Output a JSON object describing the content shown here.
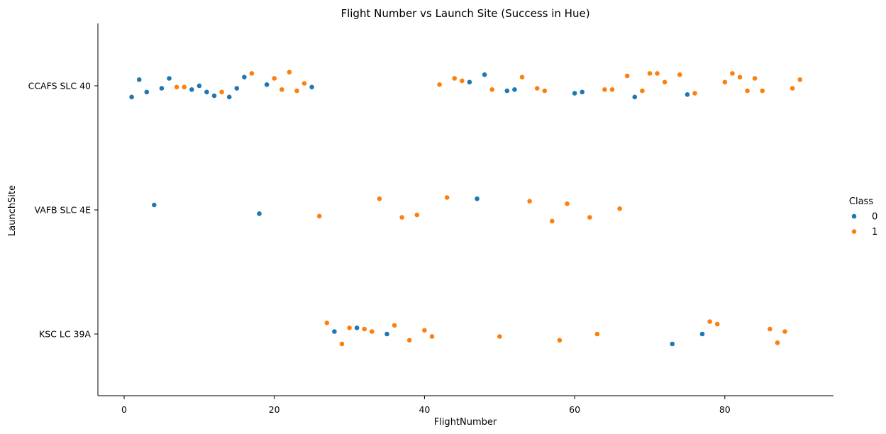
{
  "chart_data": {
    "type": "scatter",
    "title": "Flight Number vs Launch Site (Success in Hue)",
    "xlabel": "FlightNumber",
    "ylabel": "LaunchSite",
    "xlim": [
      -3.5,
      94.5
    ],
    "xticks": [
      0,
      20,
      40,
      60,
      80
    ],
    "categories": [
      "CCAFS SLC 40",
      "VAFB SLC 4E",
      "KSC LC 39A"
    ],
    "legend": {
      "title": "Class",
      "position": "right",
      "entries": [
        {
          "label": "0",
          "color": "#1f77b4"
        },
        {
          "label": "1",
          "color": "#ff7f0e"
        }
      ]
    },
    "grid": false,
    "series": [
      {
        "name": "0",
        "color": "#1f77b4",
        "points": [
          {
            "x": 1,
            "site": "CCAFS SLC 40",
            "jitter": -0.09
          },
          {
            "x": 2,
            "site": "CCAFS SLC 40",
            "jitter": 0.05
          },
          {
            "x": 3,
            "site": "CCAFS SLC 40",
            "jitter": -0.05
          },
          {
            "x": 5,
            "site": "CCAFS SLC 40",
            "jitter": -0.02
          },
          {
            "x": 6,
            "site": "CCAFS SLC 40",
            "jitter": 0.06
          },
          {
            "x": 9,
            "site": "CCAFS SLC 40",
            "jitter": -0.03
          },
          {
            "x": 10,
            "site": "CCAFS SLC 40",
            "jitter": 0.0
          },
          {
            "x": 11,
            "site": "CCAFS SLC 40",
            "jitter": -0.05
          },
          {
            "x": 12,
            "site": "CCAFS SLC 40",
            "jitter": -0.08
          },
          {
            "x": 14,
            "site": "CCAFS SLC 40",
            "jitter": -0.09
          },
          {
            "x": 15,
            "site": "CCAFS SLC 40",
            "jitter": -0.02
          },
          {
            "x": 16,
            "site": "CCAFS SLC 40",
            "jitter": 0.07
          },
          {
            "x": 19,
            "site": "CCAFS SLC 40",
            "jitter": 0.01
          },
          {
            "x": 25,
            "site": "CCAFS SLC 40",
            "jitter": -0.01
          },
          {
            "x": 46,
            "site": "CCAFS SLC 40",
            "jitter": 0.03
          },
          {
            "x": 48,
            "site": "CCAFS SLC 40",
            "jitter": 0.09
          },
          {
            "x": 51,
            "site": "CCAFS SLC 40",
            "jitter": -0.04
          },
          {
            "x": 52,
            "site": "CCAFS SLC 40",
            "jitter": -0.03
          },
          {
            "x": 60,
            "site": "CCAFS SLC 40",
            "jitter": -0.06
          },
          {
            "x": 61,
            "site": "CCAFS SLC 40",
            "jitter": -0.05
          },
          {
            "x": 68,
            "site": "CCAFS SLC 40",
            "jitter": -0.09
          },
          {
            "x": 75,
            "site": "CCAFS SLC 40",
            "jitter": -0.07
          },
          {
            "x": 4,
            "site": "VAFB SLC 4E",
            "jitter": 0.04
          },
          {
            "x": 18,
            "site": "VAFB SLC 4E",
            "jitter": -0.03
          },
          {
            "x": 47,
            "site": "VAFB SLC 4E",
            "jitter": 0.09
          },
          {
            "x": 28,
            "site": "KSC LC 39A",
            "jitter": 0.02
          },
          {
            "x": 31,
            "site": "KSC LC 39A",
            "jitter": 0.05
          },
          {
            "x": 35,
            "site": "KSC LC 39A",
            "jitter": 0.0
          },
          {
            "x": 73,
            "site": "KSC LC 39A",
            "jitter": -0.08
          },
          {
            "x": 77,
            "site": "KSC LC 39A",
            "jitter": 0.0
          }
        ]
      },
      {
        "name": "1",
        "color": "#ff7f0e",
        "points": [
          {
            "x": 7,
            "site": "CCAFS SLC 40",
            "jitter": -0.01
          },
          {
            "x": 8,
            "site": "CCAFS SLC 40",
            "jitter": -0.01
          },
          {
            "x": 13,
            "site": "CCAFS SLC 40",
            "jitter": -0.05
          },
          {
            "x": 17,
            "site": "CCAFS SLC 40",
            "jitter": 0.1
          },
          {
            "x": 20,
            "site": "CCAFS SLC 40",
            "jitter": 0.06
          },
          {
            "x": 21,
            "site": "CCAFS SLC 40",
            "jitter": -0.03
          },
          {
            "x": 22,
            "site": "CCAFS SLC 40",
            "jitter": 0.11
          },
          {
            "x": 23,
            "site": "CCAFS SLC 40",
            "jitter": -0.04
          },
          {
            "x": 24,
            "site": "CCAFS SLC 40",
            "jitter": 0.02
          },
          {
            "x": 42,
            "site": "CCAFS SLC 40",
            "jitter": 0.01
          },
          {
            "x": 44,
            "site": "CCAFS SLC 40",
            "jitter": 0.06
          },
          {
            "x": 45,
            "site": "CCAFS SLC 40",
            "jitter": 0.04
          },
          {
            "x": 49,
            "site": "CCAFS SLC 40",
            "jitter": -0.03
          },
          {
            "x": 53,
            "site": "CCAFS SLC 40",
            "jitter": 0.07
          },
          {
            "x": 55,
            "site": "CCAFS SLC 40",
            "jitter": -0.02
          },
          {
            "x": 56,
            "site": "CCAFS SLC 40",
            "jitter": -0.04
          },
          {
            "x": 64,
            "site": "CCAFS SLC 40",
            "jitter": -0.03
          },
          {
            "x": 65,
            "site": "CCAFS SLC 40",
            "jitter": -0.03
          },
          {
            "x": 67,
            "site": "CCAFS SLC 40",
            "jitter": 0.08
          },
          {
            "x": 69,
            "site": "CCAFS SLC 40",
            "jitter": -0.04
          },
          {
            "x": 70,
            "site": "CCAFS SLC 40",
            "jitter": 0.1
          },
          {
            "x": 71,
            "site": "CCAFS SLC 40",
            "jitter": 0.1
          },
          {
            "x": 72,
            "site": "CCAFS SLC 40",
            "jitter": 0.03
          },
          {
            "x": 74,
            "site": "CCAFS SLC 40",
            "jitter": 0.09
          },
          {
            "x": 76,
            "site": "CCAFS SLC 40",
            "jitter": -0.06
          },
          {
            "x": 80,
            "site": "CCAFS SLC 40",
            "jitter": 0.03
          },
          {
            "x": 81,
            "site": "CCAFS SLC 40",
            "jitter": 0.1
          },
          {
            "x": 82,
            "site": "CCAFS SLC 40",
            "jitter": 0.07
          },
          {
            "x": 83,
            "site": "CCAFS SLC 40",
            "jitter": -0.04
          },
          {
            "x": 84,
            "site": "CCAFS SLC 40",
            "jitter": 0.06
          },
          {
            "x": 85,
            "site": "CCAFS SLC 40",
            "jitter": -0.04
          },
          {
            "x": 89,
            "site": "CCAFS SLC 40",
            "jitter": -0.02
          },
          {
            "x": 90,
            "site": "CCAFS SLC 40",
            "jitter": 0.05
          },
          {
            "x": 26,
            "site": "VAFB SLC 4E",
            "jitter": -0.05
          },
          {
            "x": 34,
            "site": "VAFB SLC 4E",
            "jitter": 0.09
          },
          {
            "x": 37,
            "site": "VAFB SLC 4E",
            "jitter": -0.06
          },
          {
            "x": 39,
            "site": "VAFB SLC 4E",
            "jitter": -0.04
          },
          {
            "x": 43,
            "site": "VAFB SLC 4E",
            "jitter": 0.1
          },
          {
            "x": 54,
            "site": "VAFB SLC 4E",
            "jitter": 0.07
          },
          {
            "x": 57,
            "site": "VAFB SLC 4E",
            "jitter": -0.09
          },
          {
            "x": 59,
            "site": "VAFB SLC 4E",
            "jitter": 0.05
          },
          {
            "x": 62,
            "site": "VAFB SLC 4E",
            "jitter": -0.06
          },
          {
            "x": 66,
            "site": "VAFB SLC 4E",
            "jitter": 0.01
          },
          {
            "x": 27,
            "site": "KSC LC 39A",
            "jitter": 0.09
          },
          {
            "x": 29,
            "site": "KSC LC 39A",
            "jitter": -0.08
          },
          {
            "x": 30,
            "site": "KSC LC 39A",
            "jitter": 0.05
          },
          {
            "x": 32,
            "site": "KSC LC 39A",
            "jitter": 0.04
          },
          {
            "x": 33,
            "site": "KSC LC 39A",
            "jitter": 0.02
          },
          {
            "x": 36,
            "site": "KSC LC 39A",
            "jitter": 0.07
          },
          {
            "x": 38,
            "site": "KSC LC 39A",
            "jitter": -0.05
          },
          {
            "x": 40,
            "site": "KSC LC 39A",
            "jitter": 0.03
          },
          {
            "x": 41,
            "site": "KSC LC 39A",
            "jitter": -0.02
          },
          {
            "x": 50,
            "site": "KSC LC 39A",
            "jitter": -0.02
          },
          {
            "x": 58,
            "site": "KSC LC 39A",
            "jitter": -0.05
          },
          {
            "x": 63,
            "site": "KSC LC 39A",
            "jitter": 0.0
          },
          {
            "x": 78,
            "site": "KSC LC 39A",
            "jitter": 0.1
          },
          {
            "x": 79,
            "site": "KSC LC 39A",
            "jitter": 0.08
          },
          {
            "x": 86,
            "site": "KSC LC 39A",
            "jitter": 0.04
          },
          {
            "x": 87,
            "site": "KSC LC 39A",
            "jitter": -0.07
          },
          {
            "x": 88,
            "site": "KSC LC 39A",
            "jitter": 0.02
          }
        ]
      }
    ]
  }
}
